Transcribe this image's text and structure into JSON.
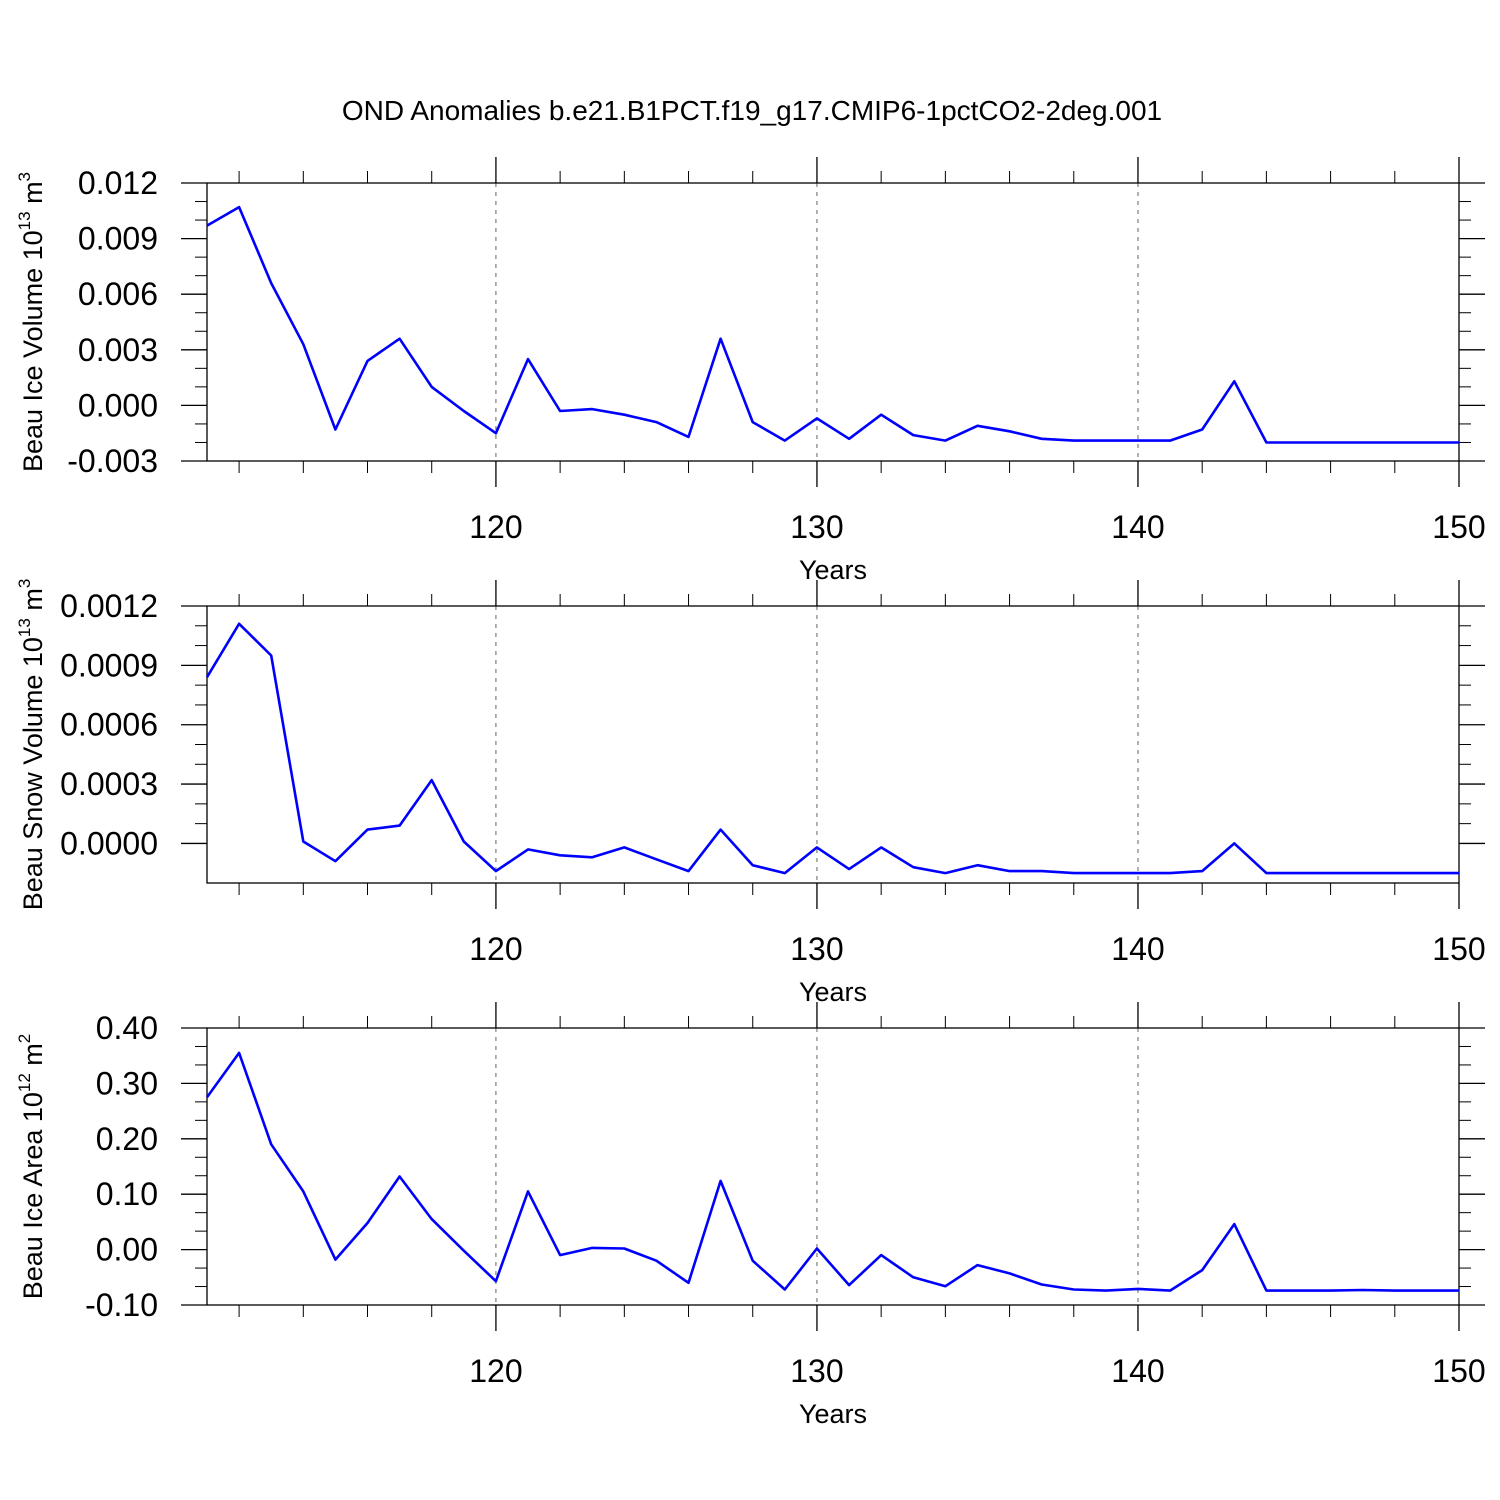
{
  "title": "OND Anomalies b.e21.B1PCT.f19_g17.CMIP6-1pctCO2-2deg.001",
  "colors": {
    "line": "#0000ff",
    "axis": "#000000",
    "grid": "#666666"
  },
  "chart_data": [
    {
      "type": "line",
      "xlabel": "Years",
      "ylabel": {
        "text": "Beau Ice Volume 10",
        "sup": "13",
        "unit": " m",
        "unit_sup": "3"
      },
      "xlim": [
        111,
        150
      ],
      "ylim": [
        -0.003,
        0.012
      ],
      "xticks": [
        120,
        130,
        140,
        150
      ],
      "xtick_labels": [
        "120",
        "130",
        "140",
        "150"
      ],
      "yticks": [
        -0.003,
        0.0,
        0.003,
        0.006,
        0.009,
        0.012
      ],
      "ytick_labels": [
        "-0.003",
        "0.000",
        "0.003",
        "0.006",
        "0.009",
        "0.012"
      ],
      "grid": "dashed vertical at major x ticks",
      "x": [
        111,
        112,
        113,
        114,
        115,
        116,
        117,
        118,
        119,
        120,
        121,
        122,
        123,
        124,
        125,
        126,
        127,
        128,
        129,
        130,
        131,
        132,
        133,
        134,
        135,
        136,
        137,
        138,
        139,
        140,
        141,
        142,
        143,
        144,
        145,
        146,
        147,
        148,
        149,
        150
      ],
      "values": [
        0.0097,
        0.0107,
        0.0066,
        0.0033,
        -0.0013,
        0.0024,
        0.0036,
        0.001,
        -0.0003,
        -0.0015,
        0.0025,
        -0.0003,
        -0.0002,
        -0.0005,
        -0.0009,
        -0.0017,
        0.0036,
        -0.0009,
        -0.0019,
        -0.0007,
        -0.0018,
        -0.0005,
        -0.0016,
        -0.0019,
        -0.0011,
        -0.0014,
        -0.0018,
        -0.0019,
        -0.0019,
        -0.0019,
        -0.0019,
        -0.0013,
        0.0013,
        -0.002,
        -0.002,
        -0.002,
        -0.002,
        -0.002,
        -0.002,
        -0.002
      ]
    },
    {
      "type": "line",
      "xlabel": "Years",
      "ylabel": {
        "text": "Beau Snow Volume 10",
        "sup": "13",
        "unit": " m",
        "unit_sup": "3"
      },
      "xlim": [
        111,
        150
      ],
      "ylim": [
        -0.0002,
        0.0012
      ],
      "xticks": [
        120,
        130,
        140,
        150
      ],
      "xtick_labels": [
        "120",
        "130",
        "140",
        "150"
      ],
      "yticks": [
        0.0,
        0.0003,
        0.0006,
        0.0009,
        0.0012
      ],
      "ytick_labels": [
        "0.0000",
        "0.0003",
        "0.0006",
        "0.0009",
        "0.0012"
      ],
      "grid": "dashed vertical at major x ticks",
      "x": [
        111,
        112,
        113,
        114,
        115,
        116,
        117,
        118,
        119,
        120,
        121,
        122,
        123,
        124,
        125,
        126,
        127,
        128,
        129,
        130,
        131,
        132,
        133,
        134,
        135,
        136,
        137,
        138,
        139,
        140,
        141,
        142,
        143,
        144,
        145,
        146,
        147,
        148,
        149,
        150
      ],
      "values": [
        0.00084,
        0.00111,
        0.00095,
        1e-05,
        -9e-05,
        7e-05,
        9e-05,
        0.00032,
        1e-05,
        -0.00014,
        -3e-05,
        -6e-05,
        -7e-05,
        -2e-05,
        -8e-05,
        -0.00014,
        7e-05,
        -0.00011,
        -0.00015,
        -2e-05,
        -0.00013,
        -2e-05,
        -0.00012,
        -0.00015,
        -0.00011,
        -0.00014,
        -0.00014,
        -0.00015,
        -0.00015,
        -0.00015,
        -0.00015,
        -0.00014,
        0.0,
        -0.00015,
        -0.00015,
        -0.00015,
        -0.00015,
        -0.00015,
        -0.00015,
        -0.00015
      ]
    },
    {
      "type": "line",
      "xlabel": "Years",
      "ylabel": {
        "text": "Beau Ice Area 10",
        "sup": "12",
        "unit": " m",
        "unit_sup": "2"
      },
      "xlim": [
        111,
        150
      ],
      "ylim": [
        -0.1,
        0.4
      ],
      "xticks": [
        120,
        130,
        140,
        150
      ],
      "xtick_labels": [
        "120",
        "130",
        "140",
        "150"
      ],
      "yticks": [
        -0.1,
        0.0,
        0.1,
        0.2,
        0.3,
        0.4
      ],
      "ytick_labels": [
        "-0.10",
        "0.00",
        "0.10",
        "0.20",
        "0.30",
        "0.40"
      ],
      "grid": "dashed vertical at major x ticks",
      "x": [
        111,
        112,
        113,
        114,
        115,
        116,
        117,
        118,
        119,
        120,
        121,
        122,
        123,
        124,
        125,
        126,
        127,
        128,
        129,
        130,
        131,
        132,
        133,
        134,
        135,
        136,
        137,
        138,
        139,
        140,
        141,
        142,
        143,
        144,
        145,
        146,
        147,
        148,
        149,
        150
      ],
      "values": [
        0.275,
        0.355,
        0.19,
        0.105,
        -0.018,
        0.048,
        0.132,
        0.055,
        -0.002,
        -0.057,
        0.105,
        -0.01,
        0.003,
        0.002,
        -0.02,
        -0.06,
        0.124,
        -0.02,
        -0.072,
        0.002,
        -0.064,
        -0.01,
        -0.05,
        -0.066,
        -0.028,
        -0.043,
        -0.063,
        -0.072,
        -0.074,
        -0.071,
        -0.074,
        -0.037,
        0.046,
        -0.074,
        -0.074,
        -0.074,
        -0.073,
        -0.074,
        -0.074,
        -0.074
      ]
    }
  ]
}
